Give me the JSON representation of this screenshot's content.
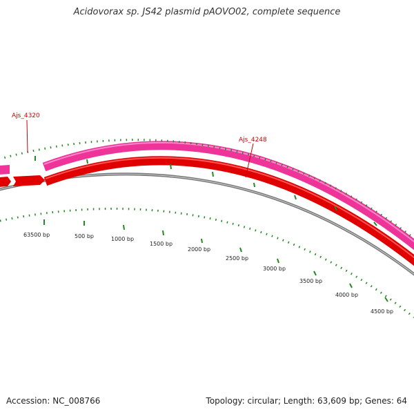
{
  "title": "Acidovorax sp. JS42 plasmid pAOVO02, complete sequence",
  "footer": {
    "accession": "Accession: NC_008766",
    "topology": "Topology: circular; Length: 63,609 bp; Genes: 64"
  },
  "map": {
    "length_bp": 63609,
    "tick_labels": [
      "63500 bp",
      "500 bp",
      "1000 bp",
      "1500 bp",
      "2000 bp",
      "2500 bp",
      "3000 bp",
      "3500 bp",
      "4000 bp",
      "4500 bp"
    ],
    "tick_positions_bp": [
      63500,
      500,
      1000,
      1500,
      2000,
      2500,
      3000,
      3500,
      4000,
      4500
    ],
    "genes": [
      {
        "label": "Ajs_4320"
      },
      {
        "label": "Ajs_4248"
      }
    ],
    "colors": {
      "outer_track": "#ee3399",
      "inner_track": "#ee0000",
      "backbone": "#888888",
      "ticks": "#228822",
      "gene_label": "#cc0000"
    }
  }
}
